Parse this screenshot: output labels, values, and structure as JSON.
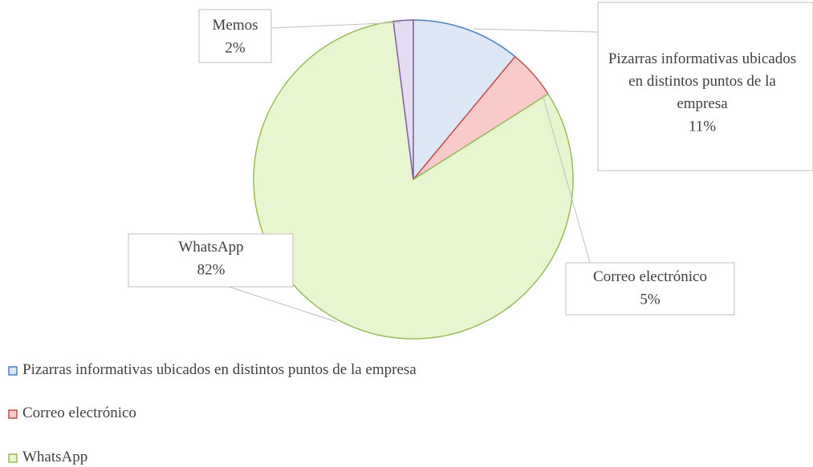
{
  "chart_data": {
    "type": "pie",
    "categories": [
      "Pizarras informativas ubicados en distintos puntos de la empresa",
      "Correo electrónico",
      "WhatsApp",
      "Memos"
    ],
    "values": [
      11,
      5,
      82,
      2
    ],
    "value_labels": [
      "11%",
      "5%",
      "82%",
      "2%"
    ],
    "colors": [
      "#4f81bd",
      "#c0504d",
      "#9bbb59",
      "#8064a2"
    ],
    "fills": [
      "#dde7f6",
      "#f8caca",
      "#e8f6cf",
      "#e5dcf1"
    ],
    "legend": "bottom-left"
  }
}
